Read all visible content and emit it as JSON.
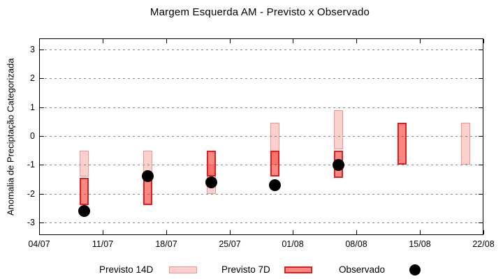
{
  "title": "Margem Esquerda AM - Previsto x Observado",
  "y_axis": {
    "label": "Anomalia de Preciptação Categorizada",
    "tick_labels": [
      "3",
      "2",
      "1",
      "0",
      "-1",
      "-2",
      "-3"
    ]
  },
  "x_axis": {
    "tick_labels": [
      "04/07",
      "11/07",
      "18/07",
      "25/07",
      "01/08",
      "08/08",
      "15/08",
      "22/08"
    ]
  },
  "legend": {
    "previsto14_label": "Previsto 14D",
    "previsto7_label": "Previsto 7D",
    "observado_label": "Observado"
  },
  "colors": {
    "f14_fill": "rgba(242,39,27,0.22)",
    "f14_border": "#F0968C",
    "f7_fill": "rgba(242,39,27,0.55)",
    "f7_border": "#E01E1E",
    "observado": "#000000",
    "grid": "#888888"
  },
  "chart_data": {
    "type": "bar",
    "subtype": "range-bars-with-scatter-overlay",
    "title": "Margem Esquerda AM - Previsto x Observado",
    "xlabel": "",
    "ylabel": "Anomalia de Preciptação Categorizada",
    "ylim": [
      -3.45,
      3.4
    ],
    "y_ticks": [
      3,
      2,
      1,
      0,
      -1,
      -2,
      -3
    ],
    "x_tick_days": [
      0,
      7,
      14,
      21,
      28,
      35,
      42,
      49
    ],
    "x_tick_labels": [
      "04/07",
      "11/07",
      "18/07",
      "25/07",
      "01/08",
      "08/08",
      "15/08",
      "22/08"
    ],
    "grid": "horizontal-dotted",
    "legend_position": "below",
    "series_names": [
      "Previsto 14D",
      "Previsto 7D",
      "Observado"
    ],
    "groups": [
      {
        "date": "09/07",
        "day": 5,
        "previsto_14d": [
          -0.5,
          -1.4
        ],
        "previsto_7d": [
          -1.45,
          -2.4
        ],
        "observado": -2.6
      },
      {
        "date": "16/07",
        "day": 12,
        "previsto_14d": [
          -0.5,
          -1.4
        ],
        "previsto_7d": [
          -1.45,
          -2.4
        ],
        "observado": -1.4
      },
      {
        "date": "23/07",
        "day": 19,
        "previsto_14d": [
          -1.0,
          -2.0
        ],
        "previsto_7d": [
          -0.5,
          -1.4
        ],
        "observado": -1.6
      },
      {
        "date": "30/07",
        "day": 26,
        "previsto_14d": [
          0.45,
          -1.0
        ],
        "previsto_7d": [
          -0.5,
          -1.4
        ],
        "observado": -1.7
      },
      {
        "date": "06/08",
        "day": 33,
        "previsto_14d": [
          0.9,
          -0.45
        ],
        "previsto_7d": [
          -0.5,
          -1.45
        ],
        "observado": -1.0
      },
      {
        "date": "13/08",
        "day": 40,
        "previsto_14d": null,
        "previsto_7d": [
          0.45,
          -1.0
        ],
        "observado": null
      },
      {
        "date": "20/08",
        "day": 47,
        "previsto_14d": [
          0.45,
          -1.0
        ],
        "previsto_7d": null,
        "observado": null
      }
    ]
  }
}
